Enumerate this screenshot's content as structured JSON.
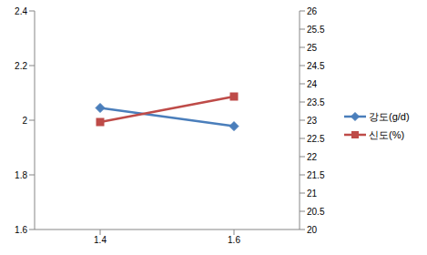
{
  "chart_data": {
    "type": "line",
    "categories": [
      "1.4",
      "1.6"
    ],
    "series": [
      {
        "name": "강도(g/d)",
        "color": "#4a7ebb",
        "marker": "diamond",
        "values": [
          2.045,
          1.978
        ]
      },
      {
        "name": "신도(%)",
        "color": "#be4b48",
        "marker": "square",
        "axis": "y2",
        "values": [
          22.95,
          23.65
        ]
      }
    ],
    "ylim": [
      1.6,
      2.4
    ],
    "yticks": [
      1.6,
      1.8,
      2,
      2.2,
      2.4
    ],
    "y2lim": [
      20,
      26
    ],
    "y2ticks": [
      20,
      20.5,
      21,
      21.5,
      22,
      22.5,
      23,
      23.5,
      24,
      24.5,
      25,
      25.5,
      26
    ],
    "grid": false,
    "legend": "right"
  }
}
